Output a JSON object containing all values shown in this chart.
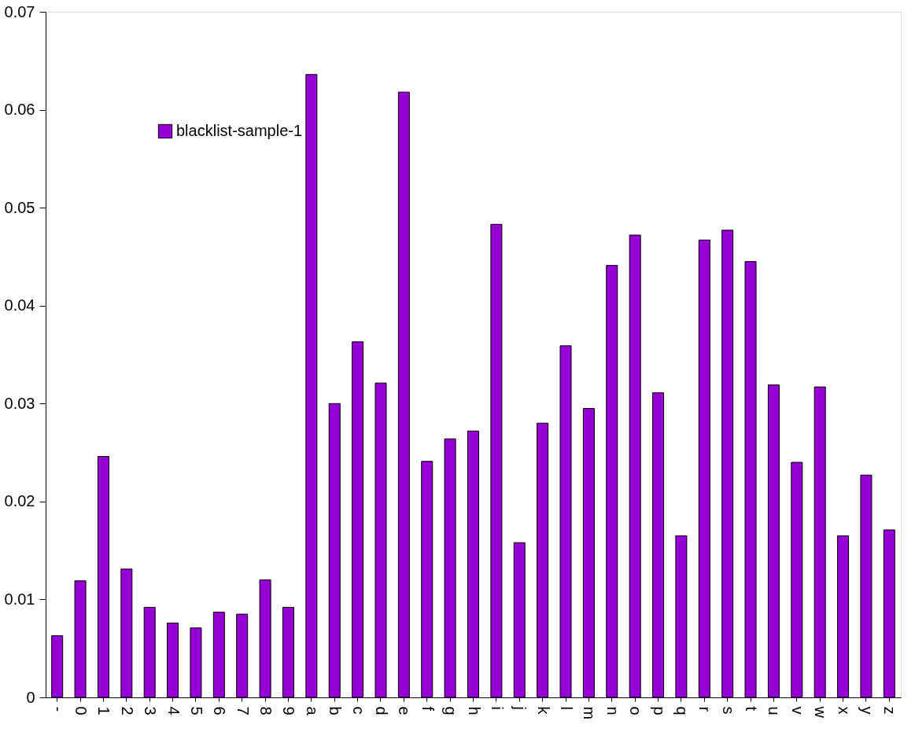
{
  "chart_data": {
    "type": "bar",
    "categories": [
      "-",
      "0",
      "1",
      "2",
      "3",
      "4",
      "5",
      "6",
      "7",
      "8",
      "9",
      "a",
      "b",
      "c",
      "d",
      "e",
      "f",
      "g",
      "h",
      "i",
      "j",
      "k",
      "l",
      "m",
      "n",
      "o",
      "p",
      "q",
      "r",
      "s",
      "t",
      "u",
      "v",
      "w",
      "x",
      "y",
      "z"
    ],
    "series": [
      {
        "name": "blacklist-sample-1",
        "color": "#9400d3",
        "values": [
          0.0063,
          0.0119,
          0.0246,
          0.0131,
          0.0092,
          0.0076,
          0.0071,
          0.0087,
          0.0085,
          0.012,
          0.0092,
          0.0636,
          0.03,
          0.0363,
          0.0321,
          0.0618,
          0.0241,
          0.0264,
          0.0272,
          0.0483,
          0.0158,
          0.028,
          0.0359,
          0.0295,
          0.0441,
          0.0472,
          0.0311,
          0.0165,
          0.0467,
          0.0477,
          0.0445,
          0.0319,
          0.024,
          0.0317,
          0.0165,
          0.0227,
          0.0171
        ]
      }
    ],
    "ylim": [
      0,
      0.07
    ],
    "yticks": [
      0,
      0.01,
      0.02,
      0.03,
      0.04,
      0.05,
      0.06,
      0.07
    ],
    "grid": false,
    "legend": "top left"
  }
}
